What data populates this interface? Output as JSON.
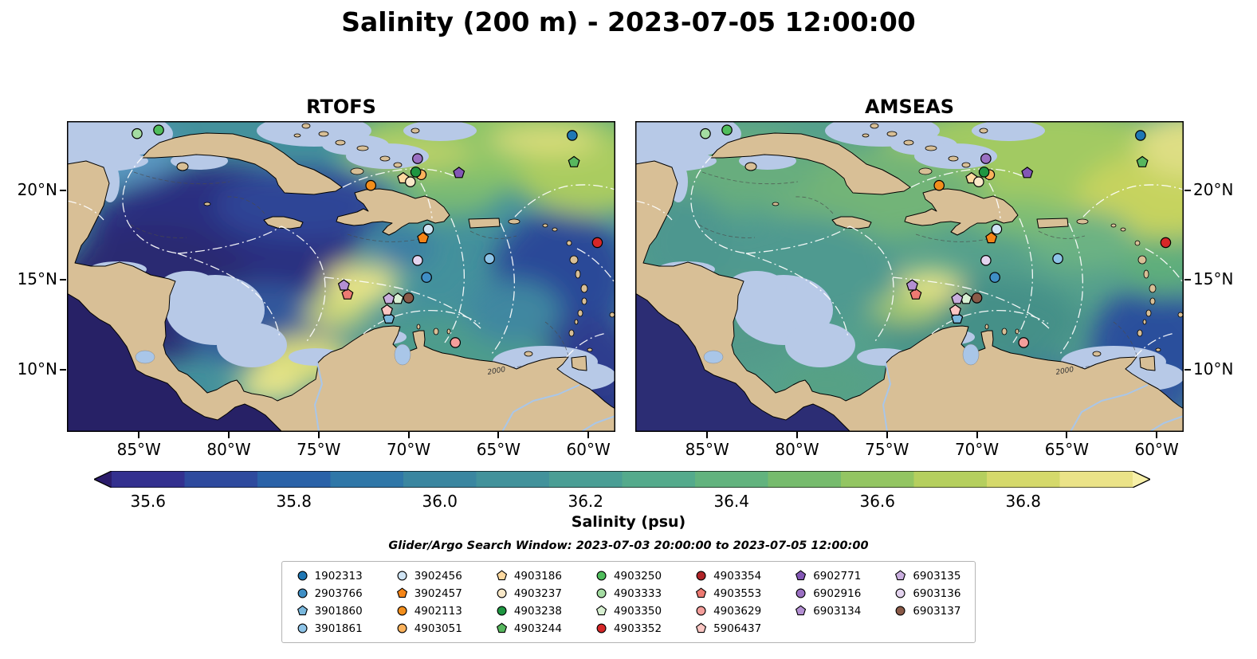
{
  "title": "Salinity (200 m) - 2023-07-05 12:00:00",
  "panels": [
    {
      "key": "rtofs",
      "title": "RTOFS"
    },
    {
      "key": "amseas",
      "title": "AMSEAS"
    }
  ],
  "map_extent": {
    "lon_min": -89.0,
    "lon_max": -58.5,
    "lat_min": 6.5,
    "lat_max": 23.9
  },
  "axes": {
    "lon_ticks": [
      {
        "label": "85°W",
        "value": -85
      },
      {
        "label": "80°W",
        "value": -80
      },
      {
        "label": "75°W",
        "value": -75
      },
      {
        "label": "70°W",
        "value": -70
      },
      {
        "label": "65°W",
        "value": -65
      },
      {
        "label": "60°W",
        "value": -60
      }
    ],
    "lat_ticks": [
      {
        "label": "20°N",
        "value": 20
      },
      {
        "label": "15°N",
        "value": 15
      },
      {
        "label": "10°N",
        "value": 10
      }
    ]
  },
  "colorbar": {
    "label": "Salinity (psu)",
    "range": [
      35.55,
      36.95
    ],
    "under_color": "#2b1c6b",
    "over_color": "#f7f0a8",
    "band_colors": [
      "#33308f",
      "#2e4a9e",
      "#2a62a8",
      "#2f77a8",
      "#3a86a0",
      "#42929b",
      "#4a9e95",
      "#54aa8c",
      "#62b37e",
      "#76bb6d",
      "#93c562",
      "#b5cf5e",
      "#d5d96b",
      "#ebe388"
    ],
    "ticks": [
      {
        "label": "35.6",
        "value": 35.6
      },
      {
        "label": "35.8",
        "value": 35.8
      },
      {
        "label": "36.0",
        "value": 36.0
      },
      {
        "label": "36.2",
        "value": 36.2
      },
      {
        "label": "36.4",
        "value": 36.4
      },
      {
        "label": "36.6",
        "value": 36.6
      },
      {
        "label": "36.8",
        "value": 36.8
      }
    ]
  },
  "annotations": {
    "search_window": "Glider/Argo Search Window: 2023-07-03 20:00:00 to 2023-07-05 12:00:00",
    "contour_label": "2000"
  },
  "legend": {
    "columns": [
      [
        "1902313",
        "2903766",
        "3901860",
        "3901861"
      ],
      [
        "3902456",
        "3902457",
        "4902113",
        "4903051"
      ],
      [
        "4903186",
        "4903237",
        "4903238",
        "4903244"
      ],
      [
        "4903250",
        "4903333",
        "4903350",
        "4903352"
      ],
      [
        "4903354",
        "4903553",
        "4903629",
        "5906437"
      ],
      [
        "6902771",
        "6902916",
        "6903134"
      ],
      [
        "6903135",
        "6903136",
        "6903137"
      ]
    ]
  },
  "chart_data": [
    {
      "type": "heatmap",
      "name": "RTOFS",
      "title": "RTOFS",
      "units": "psu",
      "value_range": [
        35.55,
        36.95
      ],
      "x_ticks": [
        "85°W",
        "80°W",
        "75°W",
        "70°W",
        "65°W",
        "60°W"
      ],
      "y_ticks": [
        "20°N",
        "15°N",
        "10°N"
      ],
      "notable_features": [
        {
          "region": "western Caribbean basin",
          "approx_salinity": 35.6
        },
        {
          "region": "Atlantic north of Cuba / Bahamas",
          "approx_salinity": 36.6
        },
        {
          "region": "bright patch near 74W 14N",
          "approx_salinity": 36.9
        },
        {
          "region": "east of Lesser Antilles",
          "approx_salinity": 35.8
        },
        {
          "region": "Pacific SW corner",
          "approx_salinity": 35.5
        }
      ]
    },
    {
      "type": "heatmap",
      "name": "AMSEAS",
      "title": "AMSEAS",
      "units": "psu",
      "value_range": [
        35.55,
        36.95
      ],
      "x_ticks": [
        "85°W",
        "80°W",
        "75°W",
        "70°W",
        "65°W",
        "60°W"
      ],
      "y_ticks": [
        "20°N",
        "15°N",
        "10°N"
      ],
      "notable_features": [
        {
          "region": "central Caribbean",
          "approx_salinity": 36.3
        },
        {
          "region": "Atlantic north of Hispaniola",
          "approx_salinity": 36.7
        },
        {
          "region": "bright patch near 73W 14.5N",
          "approx_salinity": 36.9
        },
        {
          "region": "SE corner east of Lesser Antilles",
          "approx_salinity": 35.8
        }
      ]
    },
    {
      "type": "scatter",
      "name": "Glider/Argo platforms",
      "points": [
        {
          "id": "1902313",
          "shape": "circle",
          "color": "#1f77b4",
          "lon": -60.9,
          "lat": 23.1
        },
        {
          "id": "2903766",
          "shape": "circle",
          "color": "#3f8fc5",
          "lon": -69.0,
          "lat": 15.15
        },
        {
          "id": "3901860",
          "shape": "pentagon",
          "color": "#7ab8dd",
          "lon": -71.1,
          "lat": 12.85
        },
        {
          "id": "3901861",
          "shape": "circle",
          "color": "#8ec4e8",
          "lon": -65.5,
          "lat": 16.2
        },
        {
          "id": "3902456",
          "shape": "circle",
          "color": "#cfe4f4",
          "lon": -68.9,
          "lat": 17.85
        },
        {
          "id": "3902457",
          "shape": "pentagon",
          "color": "#f58518",
          "lon": -69.2,
          "lat": 17.35
        },
        {
          "id": "4902113",
          "shape": "circle",
          "color": "#f28e1c",
          "lon": -72.1,
          "lat": 20.3
        },
        {
          "id": "4903051",
          "shape": "circle",
          "color": "#fbb25c",
          "lon": -69.3,
          "lat": 20.9
        },
        {
          "id": "4903186",
          "shape": "pentagon",
          "color": "#fdd9a0",
          "lon": -70.3,
          "lat": 20.7
        },
        {
          "id": "4903237",
          "shape": "circle",
          "color": "#f9e8c8",
          "lon": -69.9,
          "lat": 20.5
        },
        {
          "id": "4903238",
          "shape": "circle",
          "color": "#1e9641",
          "lon": -69.6,
          "lat": 21.05
        },
        {
          "id": "4903244",
          "shape": "pentagon",
          "color": "#57b75e",
          "lon": -60.8,
          "lat": 21.6
        },
        {
          "id": "4903250",
          "shape": "circle",
          "color": "#4fbd5c",
          "lon": -83.9,
          "lat": 23.4
        },
        {
          "id": "4903333",
          "shape": "circle",
          "color": "#a4dca2",
          "lon": -85.1,
          "lat": 23.2
        },
        {
          "id": "4903350",
          "shape": "pentagon",
          "color": "#d8f0d2",
          "lon": -70.6,
          "lat": 13.95
        },
        {
          "id": "4903352",
          "shape": "circle",
          "color": "#d62728",
          "lon": -59.5,
          "lat": 17.1
        },
        {
          "id": "4903354",
          "shape": "circle",
          "color": "#b02428",
          "lon": null,
          "lat": null
        },
        {
          "id": "4903553",
          "shape": "pentagon",
          "color": "#ed7a72",
          "lon": -73.4,
          "lat": 14.2
        },
        {
          "id": "4903629",
          "shape": "circle",
          "color": "#f49e9b",
          "lon": -67.4,
          "lat": 11.5
        },
        {
          "id": "5906437",
          "shape": "pentagon",
          "color": "#fbc6c3",
          "lon": -71.2,
          "lat": 13.3
        },
        {
          "id": "6902771",
          "shape": "pentagon",
          "color": "#8357b5",
          "lon": -67.2,
          "lat": 21.0
        },
        {
          "id": "6902916",
          "shape": "circle",
          "color": "#9a6fc2",
          "lon": -69.5,
          "lat": 21.8
        },
        {
          "id": "6903134",
          "shape": "pentagon",
          "color": "#b38fd2",
          "lon": -73.6,
          "lat": 14.7
        },
        {
          "id": "6903135",
          "shape": "pentagon",
          "color": "#c9aede",
          "lon": -71.1,
          "lat": 13.95
        },
        {
          "id": "6903136",
          "shape": "circle",
          "color": "#e4d4ef",
          "lon": -69.5,
          "lat": 16.1
        },
        {
          "id": "6903137",
          "shape": "circle",
          "color": "#8a5a48",
          "lon": -70.0,
          "lat": 14.0
        }
      ]
    }
  ]
}
